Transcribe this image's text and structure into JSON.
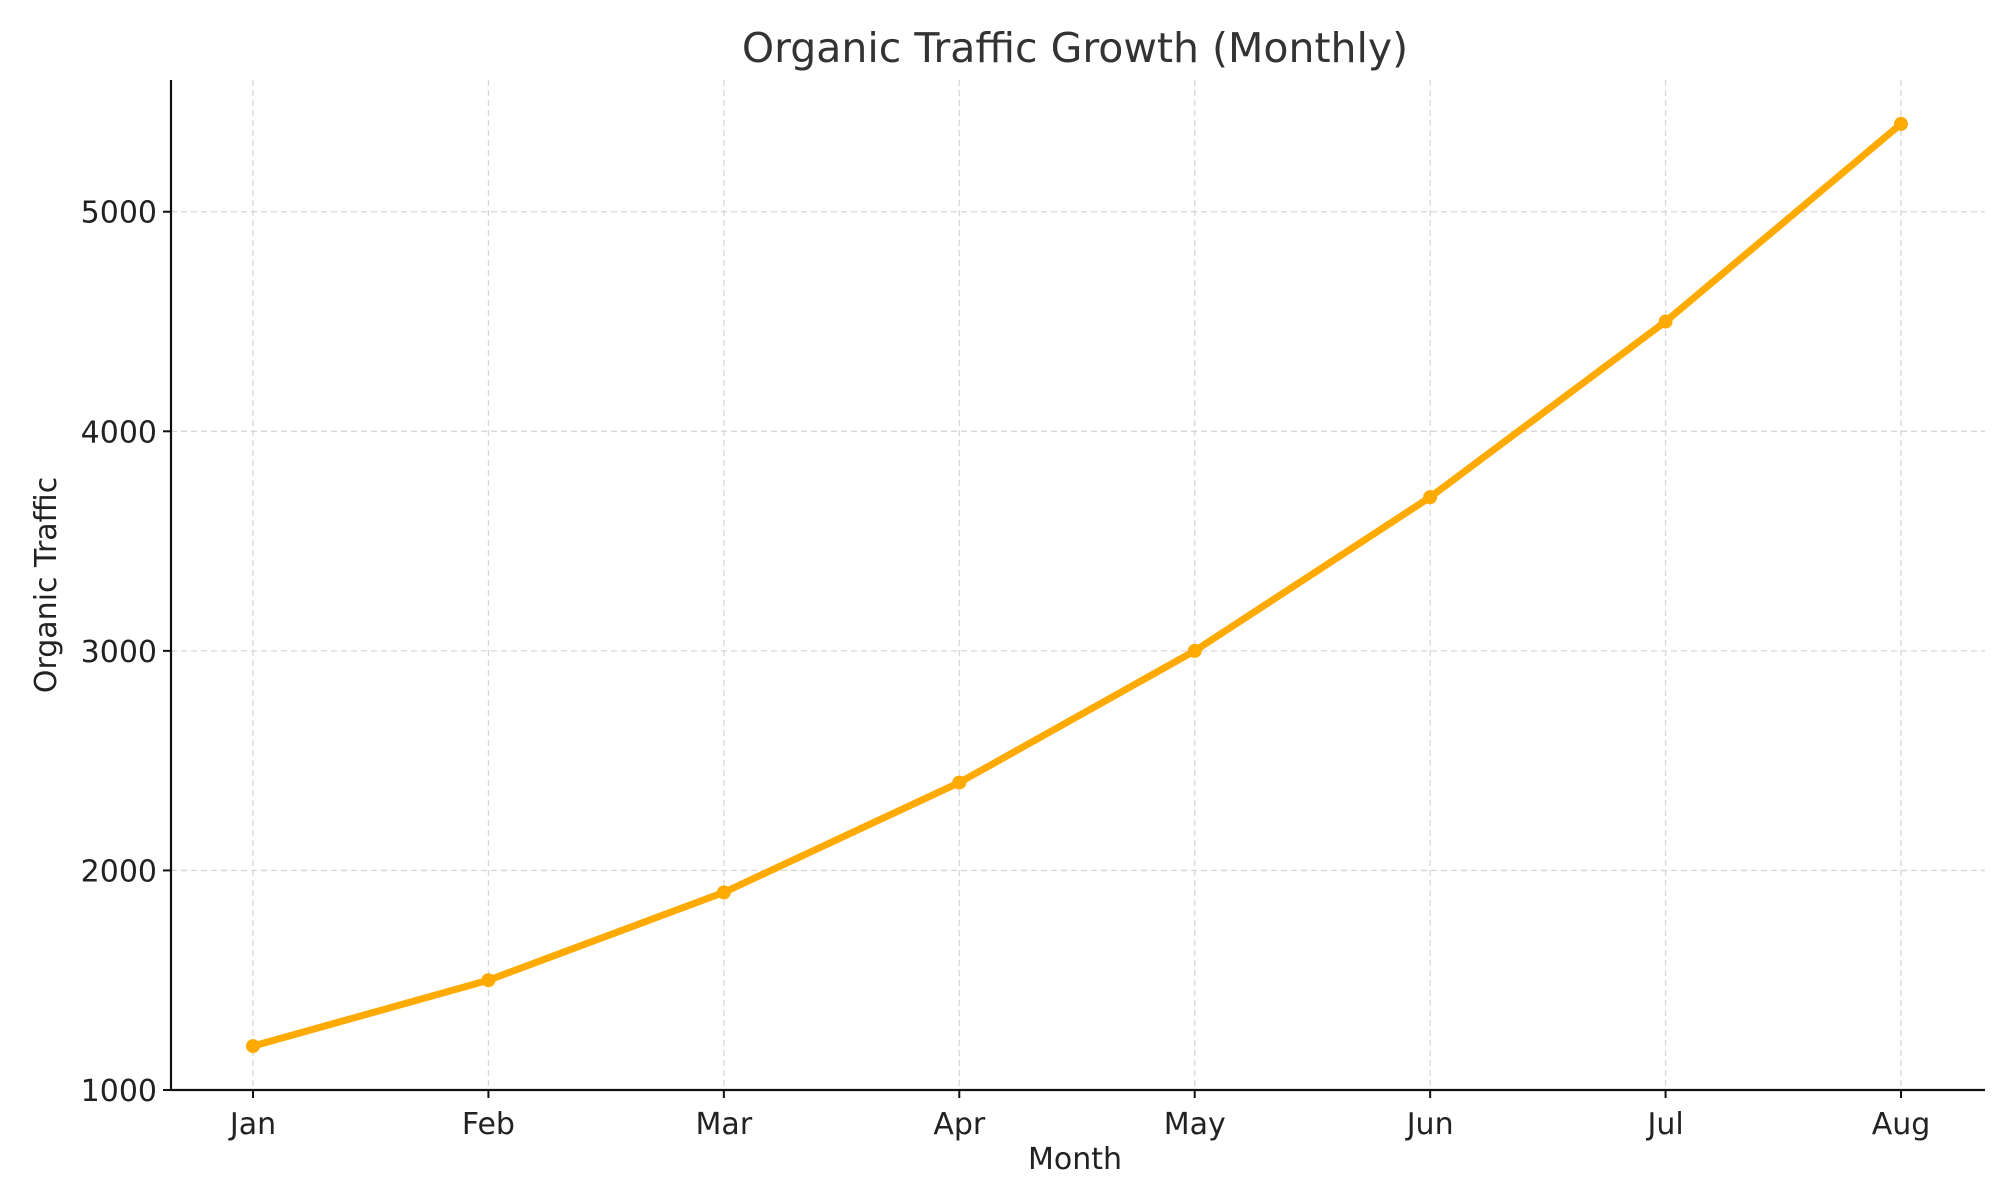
{
  "colors": {
    "series": "#FFAA00"
  },
  "chart_data": {
    "type": "line",
    "title": "Organic Traffic Growth (Monthly)",
    "xlabel": "Month",
    "ylabel": "Organic Traffic",
    "categories": [
      "Jan",
      "Feb",
      "Mar",
      "Apr",
      "May",
      "Jun",
      "Jul",
      "Aug"
    ],
    "series": [
      {
        "name": "Organic Traffic",
        "values": [
          1200,
          1500,
          1900,
          2400,
          3000,
          3700,
          4500,
          5400
        ]
      }
    ],
    "ylim": [
      1000,
      5600
    ],
    "yticks": [
      1000,
      2000,
      3000,
      4000,
      5000
    ],
    "grid": true,
    "legend": "none"
  }
}
